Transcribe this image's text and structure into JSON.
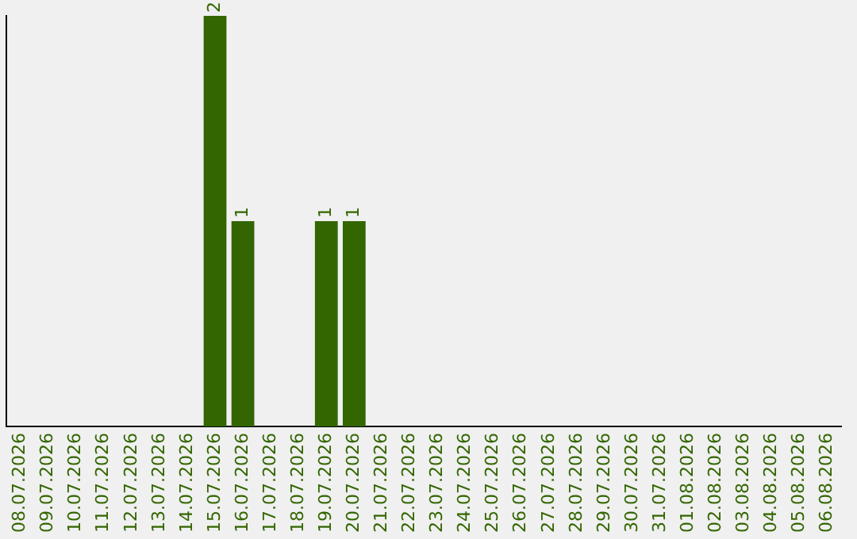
{
  "chart_data": {
    "type": "bar",
    "categories": [
      "08.07.2026",
      "09.07.2026",
      "10.07.2026",
      "11.07.2026",
      "12.07.2026",
      "13.07.2026",
      "14.07.2026",
      "15.07.2026",
      "16.07.2026",
      "17.07.2026",
      "18.07.2026",
      "19.07.2026",
      "20.07.2026",
      "21.07.2026",
      "22.07.2026",
      "23.07.2026",
      "24.07.2026",
      "25.07.2026",
      "26.07.2026",
      "27.07.2026",
      "28.07.2026",
      "29.07.2026",
      "30.07.2026",
      "31.07.2026",
      "01.08.2026",
      "02.08.2026",
      "03.08.2026",
      "04.08.2026",
      "05.08.2026",
      "06.08.2026"
    ],
    "values": [
      0,
      0,
      0,
      0,
      0,
      0,
      0,
      2,
      1,
      0,
      0,
      1,
      1,
      0,
      0,
      0,
      0,
      0,
      0,
      0,
      0,
      0,
      0,
      0,
      0,
      0,
      0,
      0,
      0,
      0
    ],
    "value_labels": [
      null,
      null,
      null,
      null,
      null,
      null,
      null,
      "2",
      "1",
      null,
      null,
      "1",
      "1",
      null,
      null,
      null,
      null,
      null,
      null,
      null,
      null,
      null,
      null,
      null,
      null,
      null,
      null,
      null,
      null,
      null
    ],
    "color": "#336600",
    "ylim": [
      0,
      2
    ],
    "tick_labels": "x",
    "grid": false,
    "legend": false
  }
}
